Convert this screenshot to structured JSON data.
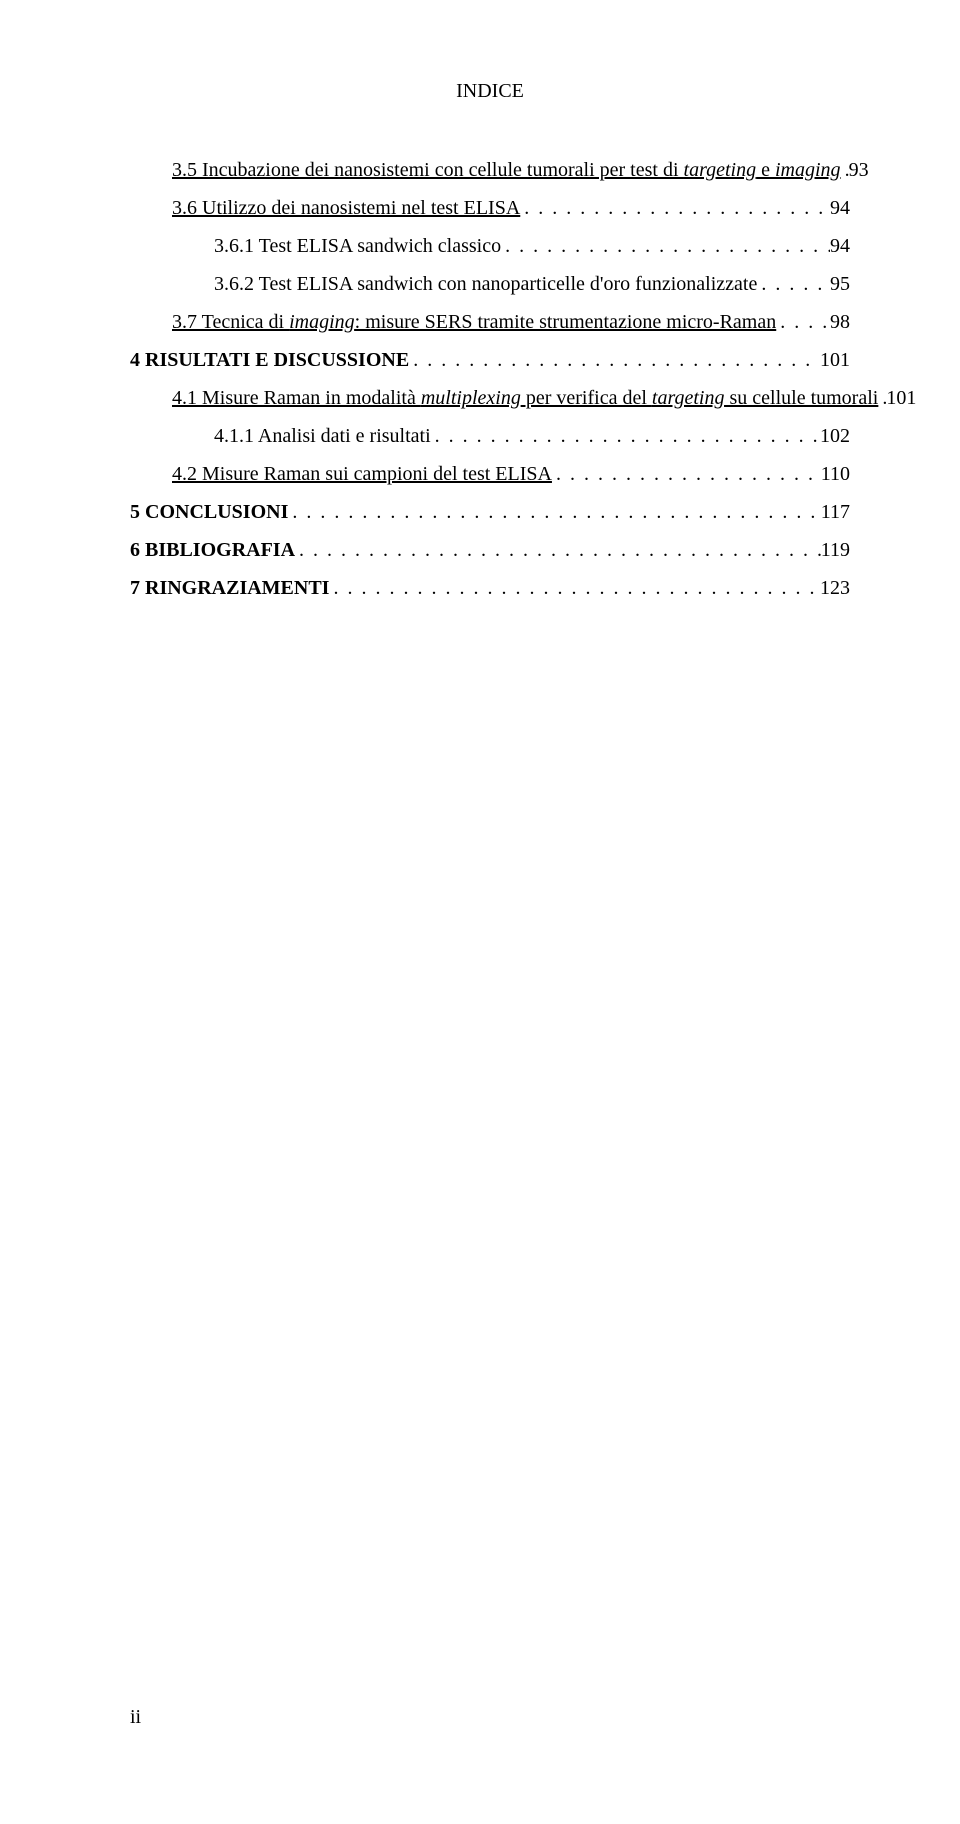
{
  "header": "INDICE",
  "footer": "ii",
  "entries": [
    {
      "indent": 1,
      "page": "93",
      "segments": [
        {
          "text": "3.5 Incubazione dei nanosistemi con cellule tumorali per test di ",
          "u": true
        },
        {
          "text": "targeting",
          "u": true,
          "i": true
        },
        {
          "text": " e ",
          "u": true
        },
        {
          "text": "imaging",
          "u": true,
          "i": true
        }
      ]
    },
    {
      "indent": 1,
      "page": "94",
      "segments": [
        {
          "text": "3.6 Utilizzo dei nanosistemi nel test ELISA",
          "u": true
        }
      ]
    },
    {
      "indent": 2,
      "page": "94",
      "segments": [
        {
          "text": "3.6.1 Test ELISA sandwich classico"
        }
      ]
    },
    {
      "indent": 2,
      "page": "95",
      "segments": [
        {
          "text": "3.6.2 Test ELISA sandwich con nanoparticelle d'oro funzionalizzate"
        }
      ]
    },
    {
      "indent": 1,
      "page": "98",
      "segments": [
        {
          "text": "3.7 Tecnica di ",
          "u": true
        },
        {
          "text": "imaging",
          "u": true,
          "i": true
        },
        {
          "text": ": misure SERS tramite strumentazione micro-Raman",
          "u": true
        }
      ]
    },
    {
      "indent": 0,
      "page": "101",
      "segments": [
        {
          "text": "4",
          "b": true
        },
        {
          "text": " "
        },
        {
          "text": "RISULTATI E DISCUSSIONE",
          "b": true
        }
      ]
    },
    {
      "indent": 1,
      "page": "101",
      "segments": [
        {
          "text": "4.1 Misure Raman in modalità ",
          "u": true
        },
        {
          "text": "multiplexing",
          "u": true,
          "i": true
        },
        {
          "text": " per verifica del ",
          "u": true
        },
        {
          "text": "targeting",
          "u": true,
          "i": true
        },
        {
          "text": " su cellule tumorali",
          "u": true
        }
      ]
    },
    {
      "indent": 2,
      "page": "102",
      "segments": [
        {
          "text": "4.1.1 Analisi dati e risultati"
        }
      ]
    },
    {
      "indent": 1,
      "page": "110",
      "segments": [
        {
          "text": "4.2 Misure Raman sui campioni del test ELISA",
          "u": true
        }
      ]
    },
    {
      "indent": 0,
      "page": "117",
      "segments": [
        {
          "text": "5",
          "b": true
        },
        {
          "text": " "
        },
        {
          "text": "CONCLUSIONI",
          "b": true
        }
      ]
    },
    {
      "indent": 0,
      "page": "119",
      "segments": [
        {
          "text": "6",
          "b": true
        },
        {
          "text": " "
        },
        {
          "text": "BIBLIOGRAFIA",
          "b": true
        }
      ]
    },
    {
      "indent": 0,
      "page": "123",
      "segments": [
        {
          "text": "7",
          "b": true
        },
        {
          "text": " "
        },
        {
          "text": "RINGRAZIAMENTI",
          "b": true
        }
      ]
    }
  ]
}
